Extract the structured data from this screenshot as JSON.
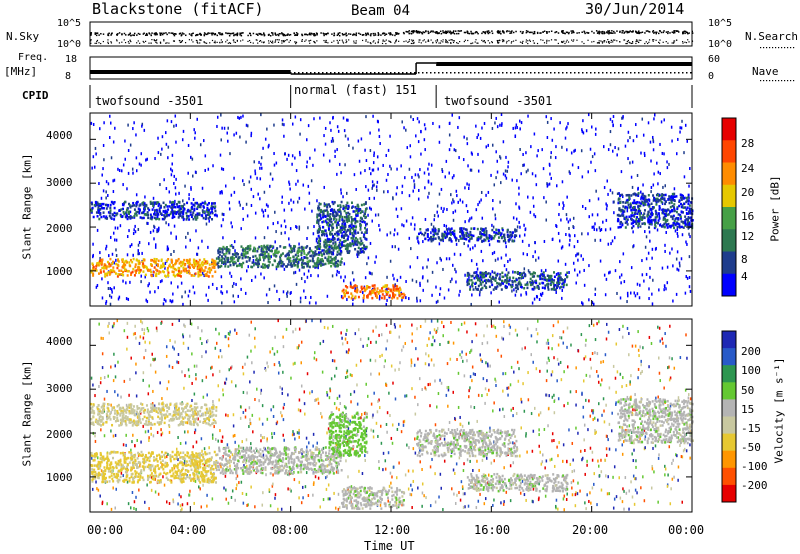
{
  "header": {
    "title": "Blackstone (fitACF)",
    "beam": "Beam 04",
    "date": "30/Jun/2014"
  },
  "left_labels": {
    "nsky": "N.Sky",
    "freq": "Freq.",
    "mhz": "[MHz]",
    "cpid": "CPID"
  },
  "right_labels": {
    "nsearch": "N.Search",
    "nave": "Nave"
  },
  "noise_panel": {
    "left_ticks": [
      "10^5",
      "10^0"
    ],
    "right_ticks": [
      "10^5",
      "10^0"
    ]
  },
  "freq_panel": {
    "left_ticks": [
      "18",
      "8"
    ],
    "right_ticks": [
      "60",
      "0"
    ]
  },
  "cpid_segments": [
    {
      "label": "twofsound -3501"
    },
    {
      "label": "normal (fast) 151"
    },
    {
      "label": "twofsound -3501"
    }
  ],
  "colors": {
    "power_scale": [
      "#0000ff",
      "#1e3c8c",
      "#2d7850",
      "#46a046",
      "#e6c800",
      "#ff8c00",
      "#ff4600",
      "#e60000"
    ],
    "velocity_scale": [
      "#1e28b4",
      "#285ac8",
      "#2d9650",
      "#64c832",
      "#b4b4b4",
      "#c8c8a0",
      "#e6c832",
      "#ff9600",
      "#ff5000",
      "#e60000"
    ]
  },
  "chart_data": [
    {
      "type": "heatmap",
      "panel": "power",
      "xlabel": "",
      "ylabel": "Slant Range [km]",
      "yticks": [
        "1000",
        "2000",
        "3000",
        "4000"
      ],
      "ylim": [
        200,
        4600
      ],
      "xlim": [
        "00:00",
        "24:00"
      ],
      "colorbar": {
        "label": "Power [dB]",
        "ticks": [
          "28",
          "24",
          "20",
          "16",
          "12",
          "8",
          "4"
        ]
      },
      "features": [
        {
          "range_km": [
            900,
            1300
          ],
          "time": [
            "00:00",
            "05:00"
          ],
          "level_dB": 26
        },
        {
          "range_km": [
            1100,
            1600
          ],
          "time": [
            "05:00",
            "10:00"
          ],
          "level_dB": 14
        },
        {
          "range_km": [
            1400,
            2600
          ],
          "time": [
            "09:00",
            "11:00"
          ],
          "level_dB": 12
        },
        {
          "range_km": [
            400,
            700
          ],
          "time": [
            "10:00",
            "12:30"
          ],
          "level_dB": 28
        },
        {
          "range_km": [
            2200,
            2600
          ],
          "time": [
            "00:00",
            "05:00"
          ],
          "level_dB": 10
        },
        {
          "range_km": [
            1700,
            2000
          ],
          "time": [
            "13:00",
            "17:00"
          ],
          "level_dB": 10
        },
        {
          "range_km": [
            600,
            1000
          ],
          "time": [
            "15:00",
            "19:00"
          ],
          "level_dB": 12
        },
        {
          "range_km": [
            2000,
            2800
          ],
          "time": [
            "21:00",
            "24:00"
          ],
          "level_dB": 10
        }
      ]
    },
    {
      "type": "heatmap",
      "panel": "velocity",
      "xlabel": "Time UT",
      "ylabel": "Slant Range [km]",
      "yticks": [
        "1000",
        "2000",
        "3000",
        "4000"
      ],
      "ylim": [
        200,
        4600
      ],
      "xticks": [
        "00:00",
        "04:00",
        "08:00",
        "12:00",
        "16:00",
        "20:00",
        "00:00"
      ],
      "colorbar": {
        "label": "Velocity [m s⁻¹]",
        "ticks": [
          "200",
          "100",
          "50",
          "15",
          "-15",
          "-50",
          "-100",
          "-200"
        ]
      },
      "features": [
        {
          "range_km": [
            900,
            1600
          ],
          "time": [
            "00:00",
            "05:00"
          ],
          "velocity_ms": -60
        },
        {
          "range_km": [
            2200,
            2700
          ],
          "time": [
            "00:00",
            "05:00"
          ],
          "velocity_ms": -40
        },
        {
          "range_km": [
            1100,
            1700
          ],
          "time": [
            "05:00",
            "10:00"
          ],
          "velocity_ms": 0
        },
        {
          "range_km": [
            1500,
            2500
          ],
          "time": [
            "09:30",
            "11:00"
          ],
          "velocity_ms": 30
        },
        {
          "range_km": [
            300,
            800
          ],
          "time": [
            "10:00",
            "12:30"
          ],
          "velocity_ms": 0
        },
        {
          "range_km": [
            1500,
            2100
          ],
          "time": [
            "13:00",
            "17:00"
          ],
          "velocity_ms": 0
        },
        {
          "range_km": [
            700,
            1100
          ],
          "time": [
            "15:00",
            "19:00"
          ],
          "velocity_ms": 0
        },
        {
          "range_km": [
            1800,
            2800
          ],
          "time": [
            "21:00",
            "24:00"
          ],
          "velocity_ms": 0
        }
      ]
    }
  ]
}
